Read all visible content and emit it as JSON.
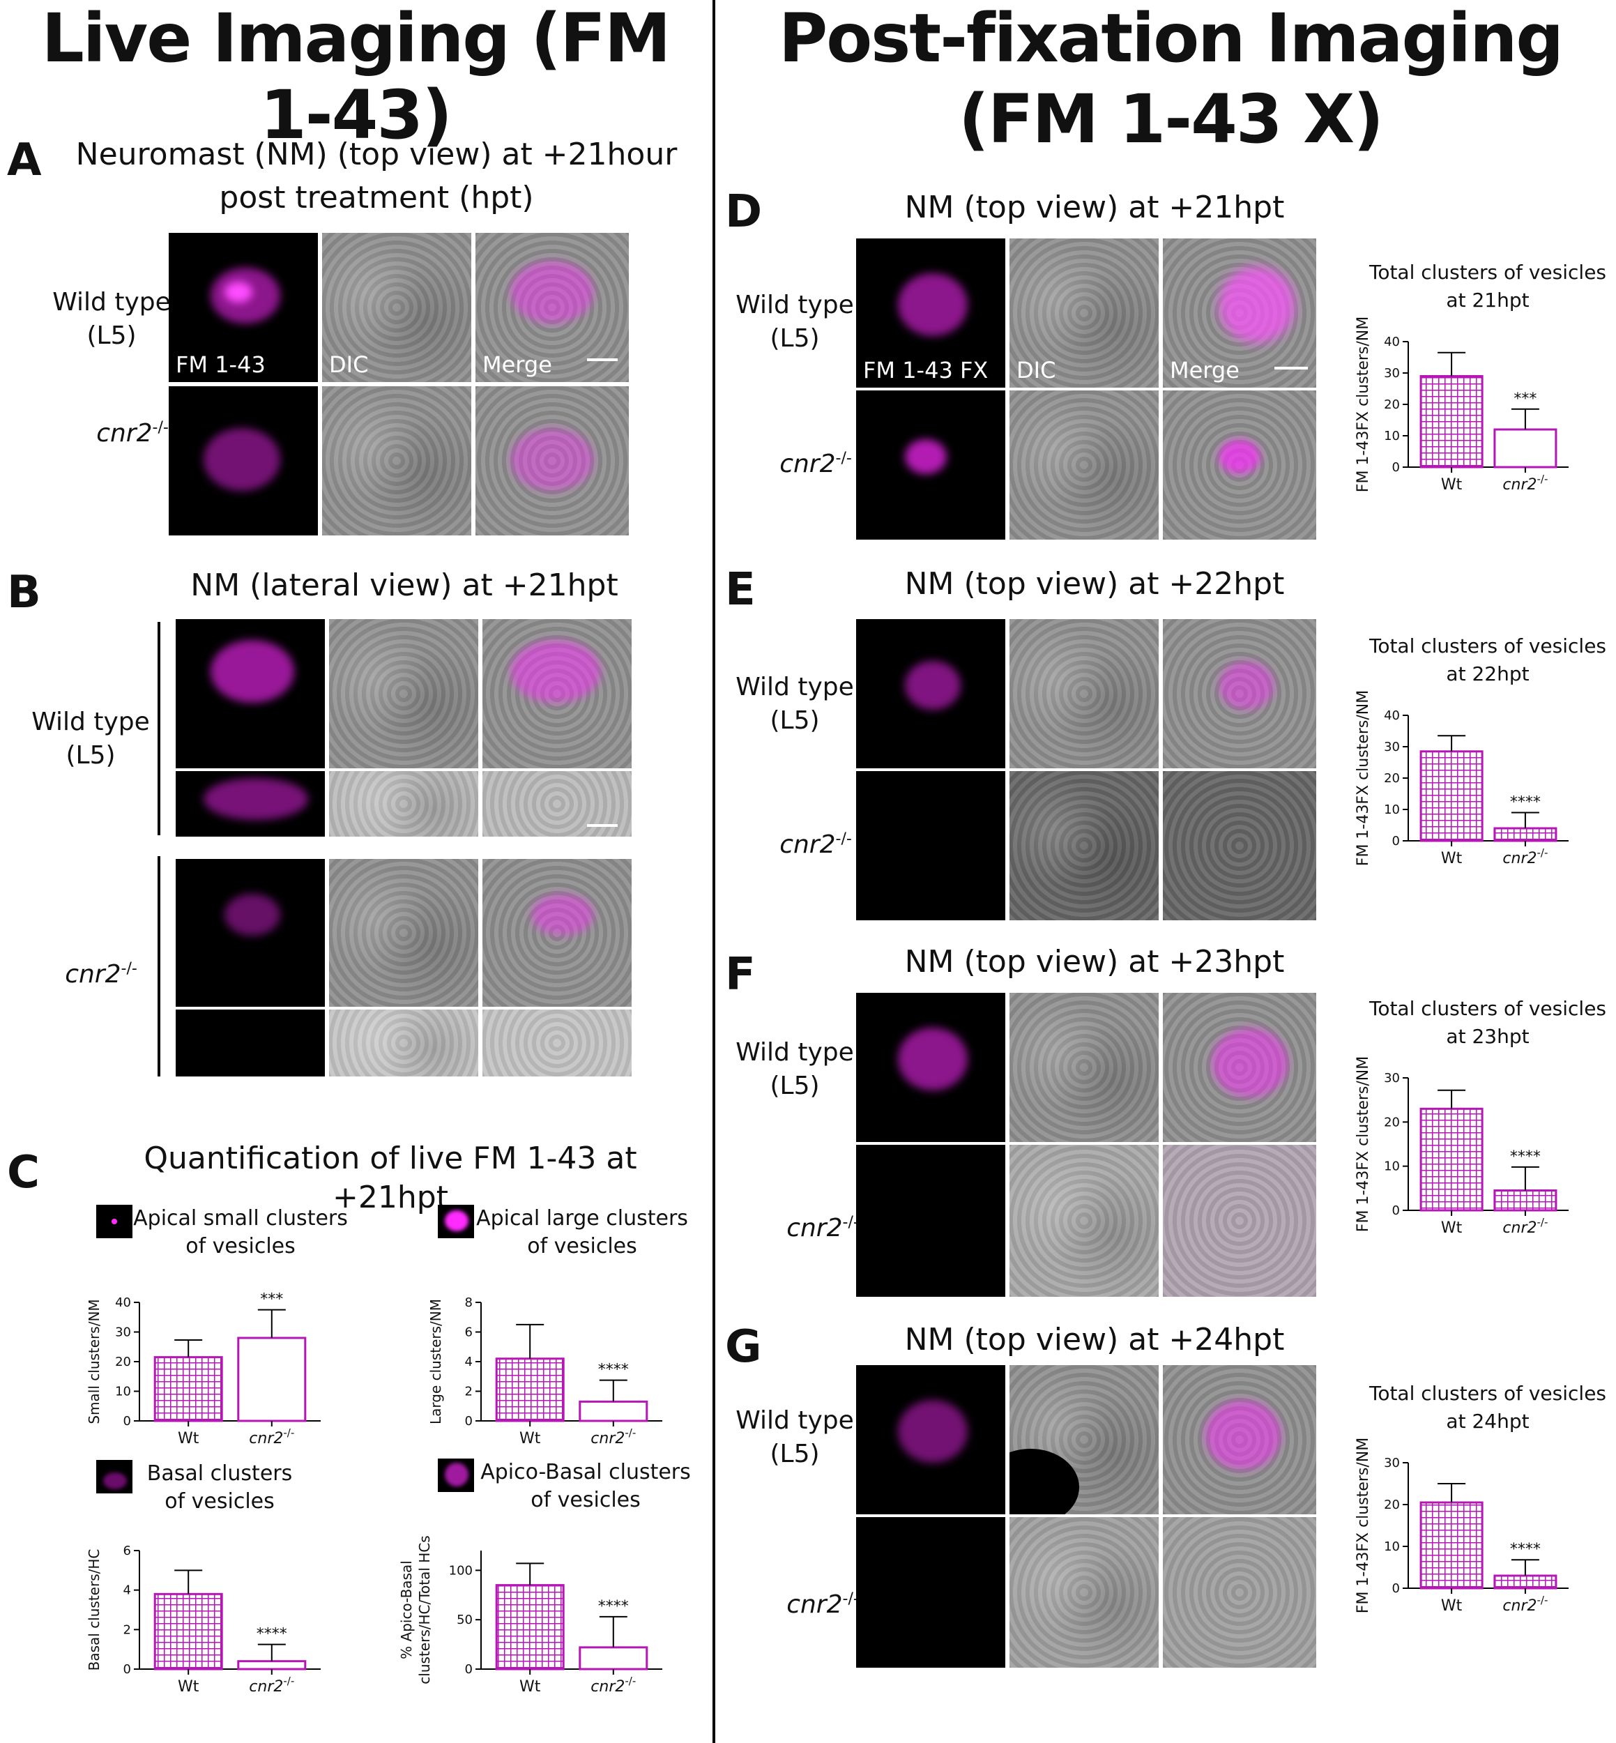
{
  "left_heading": "Live Imaging (FM 1-43)",
  "right_heading_line1": "Post-fixation Imaging",
  "right_heading_line2": "(FM 1-43 X)",
  "panel_A": {
    "label": "A",
    "title_line1": "Neuromast (NM) (top view) at +21hour",
    "title_line2": "post treatment (hpt)",
    "wt_line1": "Wild type",
    "wt_line2": "(L5)",
    "mut": "cnr2",
    "mut_sup": "-/-",
    "img_labels": [
      "FM 1-43",
      "DIC",
      "Merge"
    ]
  },
  "panel_B": {
    "label": "B",
    "title": "NM (lateral view) at +21hpt",
    "wt_line1": "Wild type",
    "wt_line2": "(L5)",
    "mut": "cnr2",
    "mut_sup": "-/-"
  },
  "panel_C": {
    "label": "C",
    "title": "Quantification of live FM 1-43 at +21hpt",
    "legend": [
      {
        "line1": "Apical small clusters",
        "line2": "of vesicles"
      },
      {
        "line1": "Apical large clusters",
        "line2": "of vesicles"
      },
      {
        "line1": "Basal clusters",
        "line2": "of vesicles"
      },
      {
        "line1": "Apico-Basal clusters",
        "line2": "of vesicles"
      }
    ]
  },
  "panel_D": {
    "label": "D",
    "title": "NM (top view) at +21hpt",
    "wt_line1": "Wild type",
    "wt_line2": "(L5)",
    "mut": "cnr2",
    "mut_sup": "-/-",
    "img_labels": [
      "FM 1-43 FX",
      "DIC",
      "Merge"
    ]
  },
  "panel_E": {
    "label": "E",
    "title": "NM (top view) at +22hpt",
    "wt_line1": "Wild type",
    "wt_line2": "(L5)",
    "mut": "cnr2",
    "mut_sup": "-/-"
  },
  "panel_F": {
    "label": "F",
    "title": "NM (top view) at +23hpt",
    "wt_line1": "Wild type",
    "wt_line2": "(L5)",
    "mut": "cnr2",
    "mut_sup": "-/-"
  },
  "panel_G": {
    "label": "G",
    "title": "NM (top view) at +24hpt",
    "wt_line1": "Wild type",
    "wt_line2": "(L5)",
    "mut": "cnr2",
    "mut_sup": "-/-"
  },
  "colors": {
    "bar": "#b516b5",
    "axis": "#000000",
    "magenta": "#ff2bff"
  },
  "chart_data": [
    {
      "id": "C1",
      "type": "bar",
      "title": "",
      "ylabel": "Small clusters/NM",
      "categories": [
        "Wt",
        "cnr2-/-"
      ],
      "cat_labels": [
        "Wt",
        "cnr2"
      ],
      "values": [
        21.5,
        28
      ],
      "errors": [
        5.8,
        9.5
      ],
      "filled": [
        true,
        false
      ],
      "ylim": [
        0,
        40
      ],
      "yticks": [
        0,
        10,
        20,
        30,
        40
      ],
      "annotations": [
        "",
        "***"
      ]
    },
    {
      "id": "C2",
      "type": "bar",
      "title": "",
      "ylabel": "Large clusters/NM",
      "categories": [
        "Wt",
        "cnr2-/-"
      ],
      "cat_labels": [
        "Wt",
        "cnr2"
      ],
      "values": [
        4.2,
        1.3
      ],
      "errors": [
        2.3,
        1.45
      ],
      "filled": [
        true,
        false
      ],
      "ylim": [
        0,
        8
      ],
      "yticks": [
        0,
        2,
        4,
        6,
        8
      ],
      "annotations": [
        "",
        "****"
      ]
    },
    {
      "id": "C3",
      "type": "bar",
      "title": "",
      "ylabel": "Basal clusters/HC",
      "categories": [
        "Wt",
        "cnr2-/-"
      ],
      "cat_labels": [
        "Wt",
        "cnr2"
      ],
      "values": [
        3.8,
        0.4
      ],
      "errors": [
        1.2,
        0.85
      ],
      "filled": [
        true,
        false
      ],
      "ylim": [
        0,
        6
      ],
      "yticks": [
        0,
        2,
        4,
        6
      ],
      "annotations": [
        "",
        "****"
      ]
    },
    {
      "id": "C4",
      "type": "bar",
      "title": "",
      "ylabel": "% Apico-Basal clusters/HC/Total HCs",
      "ylabel_lines": [
        "% Apico-Basal",
        "clusters/HC/Total HCs"
      ],
      "categories": [
        "Wt",
        "cnr2-/-"
      ],
      "cat_labels": [
        "Wt",
        "cnr2"
      ],
      "values": [
        85,
        22
      ],
      "errors": [
        22,
        31
      ],
      "filled": [
        true,
        false
      ],
      "ylim": [
        0,
        120
      ],
      "yticks": [
        0,
        50,
        100
      ],
      "annotations": [
        "",
        "****"
      ]
    },
    {
      "id": "D",
      "type": "bar",
      "title": "Total clusters of vesicles at 21hpt",
      "title_lines": [
        "Total clusters of vesicles",
        "at 21hpt"
      ],
      "ylabel": "FM 1-43FX clusters/NM",
      "categories": [
        "Wt",
        "cnr2-/-"
      ],
      "cat_labels": [
        "Wt",
        "cnr2"
      ],
      "values": [
        29,
        12
      ],
      "errors": [
        7.5,
        6.5
      ],
      "filled": [
        true,
        false
      ],
      "ylim": [
        0,
        40
      ],
      "yticks": [
        0,
        10,
        20,
        30,
        40
      ],
      "annotations": [
        "",
        "***"
      ]
    },
    {
      "id": "E",
      "type": "bar",
      "title": "Total clusters of vesicles at 22hpt",
      "title_lines": [
        "Total clusters of vesicles",
        "at 22hpt"
      ],
      "ylabel": "FM 1-43FX clusters/NM",
      "categories": [
        "Wt",
        "cnr2-/-"
      ],
      "cat_labels": [
        "Wt",
        "cnr2"
      ],
      "values": [
        28.5,
        4
      ],
      "errors": [
        5,
        5
      ],
      "filled": [
        true,
        true
      ],
      "ylim": [
        0,
        40
      ],
      "yticks": [
        0,
        10,
        20,
        30,
        40
      ],
      "annotations": [
        "",
        "****"
      ]
    },
    {
      "id": "F",
      "type": "bar",
      "title": "Total clusters of vesicles at 23hpt",
      "title_lines": [
        "Total clusters of vesicles",
        "at 23hpt"
      ],
      "ylabel": "FM 1-43FX clusters/NM",
      "categories": [
        "Wt",
        "cnr2-/-"
      ],
      "cat_labels": [
        "Wt",
        "cnr2"
      ],
      "values": [
        23,
        4.5
      ],
      "errors": [
        4.2,
        5.3
      ],
      "filled": [
        true,
        true
      ],
      "ylim": [
        0,
        30
      ],
      "yticks": [
        0,
        10,
        20,
        30
      ],
      "annotations": [
        "",
        "****"
      ]
    },
    {
      "id": "G",
      "type": "bar",
      "title": "Total clusters of vesicles at 24hpt",
      "title_lines": [
        "Total clusters of vesicles",
        "at 24hpt"
      ],
      "ylabel": "FM 1-43FX clusters/NM",
      "categories": [
        "Wt",
        "cnr2-/-"
      ],
      "cat_labels": [
        "Wt",
        "cnr2"
      ],
      "values": [
        20.5,
        3
      ],
      "errors": [
        4.5,
        3.8
      ],
      "filled": [
        true,
        true
      ],
      "ylim": [
        0,
        30
      ],
      "yticks": [
        0,
        10,
        20,
        30
      ],
      "annotations": [
        "",
        "****"
      ]
    }
  ]
}
